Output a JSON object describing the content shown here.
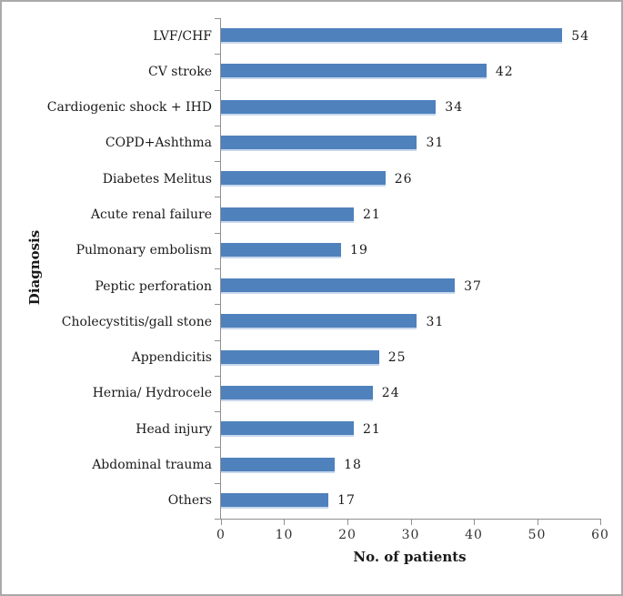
{
  "chart_data": {
    "type": "bar",
    "orientation": "horizontal",
    "categories": [
      "LVF/CHF",
      "CV stroke",
      "Cardiogenic shock + IHD",
      "COPD+Ashthma",
      "Diabetes Melitus",
      "Acute renal failure",
      "Pulmonary embolism",
      "Peptic perforation",
      "Cholecystitis/gall stone",
      "Appendicitis",
      "Hernia/ Hydrocele",
      "Head injury",
      "Abdominal trauma",
      "Others"
    ],
    "values": [
      54,
      42,
      34,
      31,
      26,
      21,
      19,
      37,
      31,
      25,
      24,
      21,
      18,
      17
    ],
    "xlabel": "No. of patients",
    "ylabel": "Diagnosis",
    "xlim": [
      0,
      60
    ],
    "x_ticks": [
      0,
      10,
      20,
      30,
      40,
      50,
      60
    ],
    "grid": false,
    "legend": "none",
    "value_labels": true,
    "colors": {
      "bar": "#4F81BD",
      "bar_bottom_edge": "#c9d8ec",
      "axis": "#909090",
      "text": "#1a1a1a",
      "frame_border": "#aaaaaa",
      "background": "#ffffff"
    }
  }
}
